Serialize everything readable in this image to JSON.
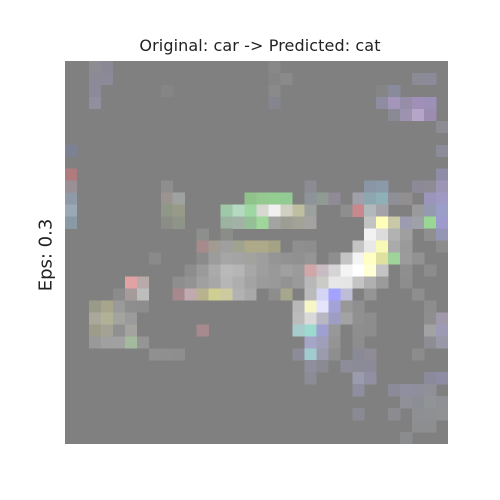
{
  "figure": {
    "title": "Original: car -> Predicted: cat",
    "row_label": "Eps: 0.3"
  },
  "image": {
    "subject": "adversarially perturbed car image (pixelated)",
    "grid_size": 32,
    "background_color": "#808080",
    "pixels": [
      [
        2,
        0,
        "#8c8c92"
      ],
      [
        3,
        0,
        "#8a8894"
      ],
      [
        17,
        0,
        "#888888"
      ],
      [
        2,
        1,
        "#8b8a96"
      ],
      [
        3,
        1,
        "#8c8a98"
      ],
      [
        17,
        1,
        "#858586"
      ],
      [
        18,
        1,
        "#8a8a8a"
      ],
      [
        29,
        1,
        "#8b8b95"
      ],
      [
        30,
        1,
        "#8c8a99"
      ],
      [
        2,
        2,
        "#8b8a98"
      ],
      [
        8,
        2,
        "#858585"
      ],
      [
        17,
        2,
        "#8a8a8a"
      ],
      [
        26,
        2,
        "#858585"
      ],
      [
        27,
        2,
        "#8a8b9a"
      ],
      [
        2,
        3,
        "#8f909c"
      ],
      [
        17,
        3,
        "#858590"
      ],
      [
        26,
        3,
        "#8e8d9f"
      ],
      [
        27,
        3,
        "#a495ba"
      ],
      [
        28,
        3,
        "#968ea9"
      ],
      [
        29,
        3,
        "#a08fb6"
      ],
      [
        30,
        3,
        "#9c8fb8"
      ],
      [
        27,
        4,
        "#8a8a94"
      ],
      [
        28,
        4,
        "#9d92af"
      ],
      [
        29,
        4,
        "#b5a6c8"
      ],
      [
        30,
        4,
        "#9c8db0"
      ],
      [
        31,
        5,
        "#8c8c92"
      ],
      [
        0,
        7,
        "#7d8194"
      ],
      [
        31,
        7,
        "#8c8c98"
      ],
      [
        0,
        9,
        "#b07b7f"
      ],
      [
        31,
        9,
        "#8f8da6"
      ],
      [
        0,
        10,
        "#9a8f95"
      ],
      [
        8,
        10,
        "#8e8e8e"
      ],
      [
        20,
        10,
        "#8c8a93"
      ],
      [
        25,
        10,
        "#8a96a4"
      ],
      [
        26,
        10,
        "#8a9aa9"
      ],
      [
        29,
        10,
        "#8b8a96"
      ],
      [
        30,
        10,
        "#8f8b95"
      ],
      [
        31,
        10,
        "#9c96b4"
      ],
      [
        0,
        11,
        "#8f9aa9"
      ],
      [
        8,
        11,
        "#9a9390"
      ],
      [
        9,
        11,
        "#9ea3a1"
      ],
      [
        15,
        11,
        "#90c28c"
      ],
      [
        16,
        11,
        "#95c990"
      ],
      [
        17,
        11,
        "#93cd92"
      ],
      [
        18,
        11,
        "#92cb93"
      ],
      [
        20,
        11,
        "#8d9399"
      ],
      [
        21,
        11,
        "#8f9b92"
      ],
      [
        22,
        11,
        "#8f8a95"
      ],
      [
        24,
        11,
        "#a0a0aa"
      ],
      [
        25,
        11,
        "#8ea7ae"
      ],
      [
        26,
        11,
        "#8fb0b6"
      ],
      [
        27,
        11,
        "#8f8f98"
      ],
      [
        28,
        11,
        "#918f8f"
      ],
      [
        30,
        11,
        "#9b95bc"
      ],
      [
        31,
        11,
        "#9f99c4"
      ],
      [
        0,
        12,
        "#9ba9b4"
      ],
      [
        8,
        12,
        "#8f9787"
      ],
      [
        9,
        12,
        "#979a87"
      ],
      [
        13,
        12,
        "#9fc8a8"
      ],
      [
        14,
        12,
        "#b5d9c1"
      ],
      [
        15,
        12,
        "#9dd8a3"
      ],
      [
        16,
        12,
        "#d6d8d1"
      ],
      [
        17,
        12,
        "#f0f0f0"
      ],
      [
        18,
        12,
        "#cfcfc2"
      ],
      [
        19,
        12,
        "#bdbfa0"
      ],
      [
        20,
        12,
        "#9da19d"
      ],
      [
        23,
        12,
        "#8e8e8e"
      ],
      [
        24,
        12,
        "#c9888e"
      ],
      [
        25,
        12,
        "#b2b9bb"
      ],
      [
        26,
        12,
        "#a3a3a9"
      ],
      [
        29,
        12,
        "#9a9a9a"
      ],
      [
        30,
        12,
        "#949bb0"
      ],
      [
        31,
        12,
        "#9b9fc8"
      ],
      [
        0,
        13,
        "#8a9aa5"
      ],
      [
        8,
        13,
        "#8b8c86"
      ],
      [
        9,
        13,
        "#8f9488"
      ],
      [
        13,
        13,
        "#9cb3a1"
      ],
      [
        14,
        13,
        "#a3b2a7"
      ],
      [
        15,
        13,
        "#95c097"
      ],
      [
        16,
        13,
        "#9fd79b"
      ],
      [
        17,
        13,
        "#a3a3a3"
      ],
      [
        18,
        13,
        "#9d9d94"
      ],
      [
        19,
        13,
        "#a2a296"
      ],
      [
        20,
        13,
        "#a5a2a2"
      ],
      [
        25,
        13,
        "#c3c3c3"
      ],
      [
        26,
        13,
        "#ffffb9"
      ],
      [
        27,
        13,
        "#c9c9a8"
      ],
      [
        28,
        13,
        "#9d9bb0"
      ],
      [
        29,
        13,
        "#9fa1a9"
      ],
      [
        30,
        13,
        "#9ad794"
      ],
      [
        31,
        13,
        "#9d9acc"
      ],
      [
        25,
        14,
        "#f2f2f2"
      ],
      [
        26,
        14,
        "#dcdcdc"
      ],
      [
        27,
        14,
        "#b2b2b2"
      ],
      [
        28,
        14,
        "#9f9f9f"
      ],
      [
        30,
        14,
        "#8f8f8f"
      ],
      [
        31,
        14,
        "#9595b4"
      ],
      [
        11,
        14,
        "#8c8f8c"
      ],
      [
        13,
        14,
        "#8a8d88"
      ],
      [
        11,
        15,
        "#a78a8c"
      ],
      [
        12,
        15,
        "#a19b92"
      ],
      [
        13,
        15,
        "#9f9f9f"
      ],
      [
        14,
        15,
        "#a0a390"
      ],
      [
        15,
        15,
        "#ada989"
      ],
      [
        16,
        15,
        "#ada989"
      ],
      [
        17,
        15,
        "#a5a386"
      ],
      [
        19,
        15,
        "#8f8f8f"
      ],
      [
        20,
        15,
        "#8d8d8d"
      ],
      [
        24,
        15,
        "#c4c4c4"
      ],
      [
        25,
        15,
        "#e8e8e8"
      ],
      [
        26,
        15,
        "#f8f8b7"
      ],
      [
        27,
        15,
        "#aaaaaa"
      ],
      [
        28,
        15,
        "#9a9a9a"
      ],
      [
        31,
        15,
        "#8c8c8c"
      ],
      [
        7,
        16,
        "#8a8a8a"
      ],
      [
        11,
        16,
        "#8b8b8b"
      ],
      [
        12,
        16,
        "#9c9c9c"
      ],
      [
        13,
        16,
        "#a6a6a6"
      ],
      [
        14,
        16,
        "#a4a4a4"
      ],
      [
        15,
        16,
        "#a2a29e"
      ],
      [
        16,
        16,
        "#9e9e9e"
      ],
      [
        17,
        16,
        "#959595"
      ],
      [
        18,
        16,
        "#929292"
      ],
      [
        19,
        16,
        "#909090"
      ],
      [
        20,
        16,
        "#959595"
      ],
      [
        22,
        16,
        "#8e8e8e"
      ],
      [
        23,
        16,
        "#c4c4c4"
      ],
      [
        24,
        16,
        "#f4f4f4"
      ],
      [
        25,
        16,
        "#ffffc4"
      ],
      [
        26,
        16,
        "#e0e0a0"
      ],
      [
        27,
        16,
        "#9fd39a"
      ],
      [
        28,
        16,
        "#9b9b9b"
      ],
      [
        29,
        16,
        "#929292"
      ],
      [
        10,
        17,
        "#8d8d8d"
      ],
      [
        11,
        17,
        "#9a9a9a"
      ],
      [
        12,
        17,
        "#aaaaaa"
      ],
      [
        13,
        17,
        "#b9b9b9"
      ],
      [
        14,
        17,
        "#b5b5b5"
      ],
      [
        15,
        17,
        "#a7a7a7"
      ],
      [
        16,
        17,
        "#9e9e9e"
      ],
      [
        17,
        17,
        "#999999"
      ],
      [
        18,
        17,
        "#a0a0a0"
      ],
      [
        19,
        17,
        "#9b9b9b"
      ],
      [
        20,
        17,
        "#d0a6a9"
      ],
      [
        21,
        17,
        "#c8bcc2"
      ],
      [
        22,
        17,
        "#d5d5d5"
      ],
      [
        23,
        17,
        "#f4f4f4"
      ],
      [
        24,
        17,
        "#ffffff"
      ],
      [
        25,
        17,
        "#ffffd6"
      ],
      [
        26,
        17,
        "#c4c4c4"
      ],
      [
        28,
        17,
        "#8e8e8e"
      ],
      [
        30,
        17,
        "#8c8c8c"
      ],
      [
        5,
        18,
        "#e1a2a4"
      ],
      [
        6,
        18,
        "#b8aaa8"
      ],
      [
        9,
        18,
        "#8e8e8e"
      ],
      [
        10,
        18,
        "#939393"
      ],
      [
        11,
        18,
        "#a0a0a0"
      ],
      [
        12,
        18,
        "#a7a7a7"
      ],
      [
        13,
        18,
        "#b6b6b6"
      ],
      [
        14,
        18,
        "#aeaeae"
      ],
      [
        15,
        18,
        "#a3a3a3"
      ],
      [
        16,
        18,
        "#9b9b9b"
      ],
      [
        17,
        18,
        "#999999"
      ],
      [
        18,
        18,
        "#939393"
      ],
      [
        19,
        18,
        "#9a9a9a"
      ],
      [
        20,
        18,
        "#b8b8b8"
      ],
      [
        21,
        18,
        "#cacac6"
      ],
      [
        22,
        18,
        "#e7e7e7"
      ],
      [
        23,
        18,
        "#e5e5e5"
      ],
      [
        24,
        18,
        "#c4c4c4"
      ],
      [
        25,
        18,
        "#b0b0b0"
      ],
      [
        26,
        18,
        "#9b9b9b"
      ],
      [
        28,
        18,
        "#8d8d8d"
      ],
      [
        4,
        19,
        "#8b8b8b"
      ],
      [
        5,
        19,
        "#a59b9b"
      ],
      [
        6,
        19,
        "#bdbdbd"
      ],
      [
        9,
        19,
        "#a6888d"
      ],
      [
        10,
        19,
        "#c0aaaf"
      ],
      [
        11,
        19,
        "#b9b28f"
      ],
      [
        12,
        19,
        "#cfcf92"
      ],
      [
        13,
        19,
        "#cdc9a1"
      ],
      [
        14,
        19,
        "#b2b2b2"
      ],
      [
        15,
        19,
        "#a9a9a9"
      ],
      [
        17,
        19,
        "#8d8d8d"
      ],
      [
        18,
        19,
        "#a6a68d"
      ],
      [
        20,
        19,
        "#bbbbbb"
      ],
      [
        21,
        19,
        "#d4d4f5"
      ],
      [
        22,
        19,
        "#a3a3ff"
      ],
      [
        23,
        19,
        "#bdbdd8"
      ],
      [
        25,
        19,
        "#959595"
      ],
      [
        29,
        19,
        "#8e8e8e"
      ],
      [
        2,
        20,
        "#9a9a88"
      ],
      [
        3,
        20,
        "#a7a68c"
      ],
      [
        4,
        20,
        "#9a9a9a"
      ],
      [
        5,
        20,
        "#8e8e8e"
      ],
      [
        6,
        20,
        "#8d8d8d"
      ],
      [
        19,
        20,
        "#b8b8b8"
      ],
      [
        20,
        20,
        "#f6f6c7"
      ],
      [
        21,
        20,
        "#e4e4ff"
      ],
      [
        22,
        20,
        "#a3a3d7"
      ],
      [
        23,
        20,
        "#989898"
      ],
      [
        24,
        20,
        "#8f8f8f"
      ],
      [
        30,
        20,
        "#8d8d8d"
      ],
      [
        2,
        21,
        "#aaa89b"
      ],
      [
        3,
        21,
        "#b0b296"
      ],
      [
        4,
        21,
        "#a4a49e"
      ],
      [
        5,
        21,
        "#9b9b9b"
      ],
      [
        19,
        21,
        "#bcbcbc"
      ],
      [
        20,
        21,
        "#d9d9d9"
      ],
      [
        21,
        21,
        "#b8b8c4"
      ],
      [
        22,
        21,
        "#9e9ec4"
      ],
      [
        23,
        21,
        "#a3a3a3"
      ],
      [
        24,
        21,
        "#909090"
      ],
      [
        25,
        21,
        "#8d8d8d"
      ],
      [
        30,
        21,
        "#8e8e8e"
      ],
      [
        31,
        21,
        "#9f99a9"
      ],
      [
        2,
        22,
        "#9c9c89"
      ],
      [
        3,
        22,
        "#a3a295"
      ],
      [
        4,
        22,
        "#909090"
      ],
      [
        5,
        22,
        "#a4a39f"
      ],
      [
        11,
        22,
        "#a68a8d"
      ],
      [
        19,
        22,
        "#a8cbcb"
      ],
      [
        20,
        22,
        "#9cd9cf"
      ],
      [
        21,
        22,
        "#9f9fd2"
      ],
      [
        22,
        22,
        "#989898"
      ],
      [
        24,
        22,
        "#8e8e8e"
      ],
      [
        25,
        22,
        "#8d8d8d"
      ],
      [
        30,
        22,
        "#a2a1a4"
      ],
      [
        31,
        22,
        "#9c9ab4"
      ],
      [
        2,
        23,
        "#999999"
      ],
      [
        3,
        23,
        "#a0a0a0"
      ],
      [
        4,
        23,
        "#a1a1a1"
      ],
      [
        5,
        23,
        "#a3ba9f"
      ],
      [
        6,
        23,
        "#959595"
      ],
      [
        20,
        23,
        "#a5a5c8"
      ],
      [
        21,
        23,
        "#9f9fb9"
      ],
      [
        22,
        23,
        "#949494"
      ],
      [
        24,
        23,
        "#8d8d8d"
      ],
      [
        30,
        23,
        "#8e8d94"
      ],
      [
        31,
        23,
        "#9898a6"
      ],
      [
        7,
        24,
        "#909090"
      ],
      [
        8,
        24,
        "#8f8f8f"
      ],
      [
        9,
        24,
        "#8e8e8e"
      ],
      [
        19,
        24,
        "#8b8b99"
      ],
      [
        20,
        24,
        "#a0ccd0"
      ],
      [
        21,
        24,
        "#9b9bad"
      ],
      [
        22,
        24,
        "#8e8e8e"
      ],
      [
        24,
        24,
        "#8a8a97"
      ],
      [
        25,
        24,
        "#908c96"
      ],
      [
        29,
        24,
        "#8c8c8c"
      ],
      [
        20,
        25,
        "#8e8e9c"
      ],
      [
        21,
        25,
        "#8a8a92"
      ],
      [
        23,
        25,
        "#8d8d99"
      ],
      [
        24,
        25,
        "#8b8a97"
      ],
      [
        25,
        25,
        "#8c8a99"
      ],
      [
        20,
        26,
        "#8c8c97"
      ],
      [
        24,
        26,
        "#9b9bae"
      ],
      [
        25,
        26,
        "#928fa2"
      ],
      [
        30,
        26,
        "#8b8a9a"
      ],
      [
        31,
        26,
        "#8d8ca2"
      ],
      [
        24,
        27,
        "#8e8e9e"
      ],
      [
        27,
        27,
        "#8b8a99"
      ],
      [
        28,
        27,
        "#8f8fa0"
      ],
      [
        29,
        27,
        "#8e8e9c"
      ],
      [
        30,
        27,
        "#909098"
      ],
      [
        28,
        28,
        "#8f9098"
      ],
      [
        29,
        28,
        "#8c8d95"
      ],
      [
        30,
        28,
        "#909496"
      ],
      [
        31,
        28,
        "#8f8f96"
      ],
      [
        24,
        29,
        "#8a8a94"
      ],
      [
        27,
        29,
        "#8c8c90"
      ],
      [
        29,
        29,
        "#8d8f92"
      ],
      [
        30,
        29,
        "#8e9094"
      ],
      [
        31,
        29,
        "#8f9193"
      ],
      [
        29,
        30,
        "#8c8e90"
      ],
      [
        30,
        30,
        "#8c8e90"
      ],
      [
        28,
        31,
        "#8a8c8e"
      ]
    ]
  }
}
